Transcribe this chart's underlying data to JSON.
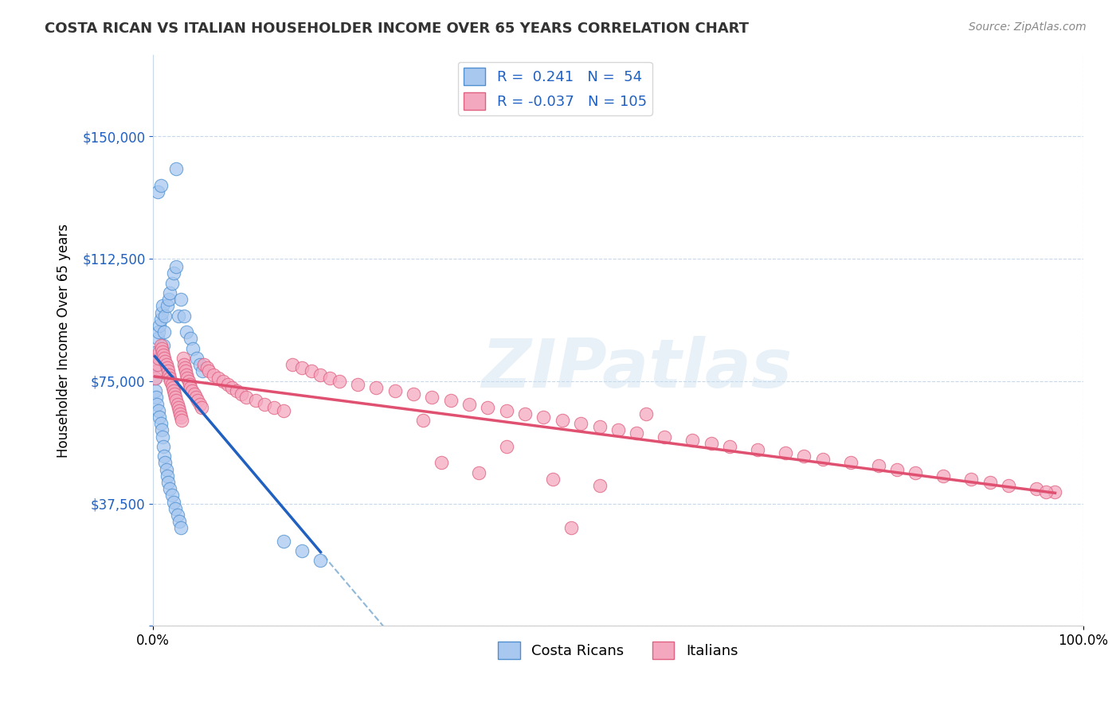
{
  "title": "COSTA RICAN VS ITALIAN HOUSEHOLDER INCOME OVER 65 YEARS CORRELATION CHART",
  "source": "Source: ZipAtlas.com",
  "ylabel": "Householder Income Over 65 years",
  "xlim": [
    0,
    1
  ],
  "ylim": [
    0,
    175000
  ],
  "yticks": [
    0,
    37500,
    75000,
    112500,
    150000
  ],
  "ytick_labels": [
    "",
    "$37,500",
    "$75,000",
    "$112,500",
    "$150,000"
  ],
  "xtick_labels": [
    "0.0%",
    "100.0%"
  ],
  "cr_color": "#a8c8f0",
  "it_color": "#f4a8bf",
  "cr_edge_color": "#5090d0",
  "it_edge_color": "#e06080",
  "cr_line_color": "#2060c0",
  "it_line_color": "#e05070",
  "dashed_line_color": "#90b8d8",
  "watermark": "ZIPatlas",
  "background_color": "#ffffff",
  "grid_color": "#c8d8e8",
  "costa_ricans_x": [
    0.005,
    0.008,
    0.025,
    0.002,
    0.003,
    0.004,
    0.005,
    0.006,
    0.007,
    0.008,
    0.009,
    0.01,
    0.011,
    0.012,
    0.013,
    0.015,
    0.017,
    0.018,
    0.02,
    0.022,
    0.025,
    0.027,
    0.03,
    0.033,
    0.036,
    0.04,
    0.043,
    0.047,
    0.05,
    0.053,
    0.002,
    0.003,
    0.004,
    0.006,
    0.007,
    0.008,
    0.009,
    0.01,
    0.011,
    0.012,
    0.013,
    0.014,
    0.015,
    0.016,
    0.018,
    0.02,
    0.022,
    0.024,
    0.026,
    0.028,
    0.03,
    0.14,
    0.16,
    0.18
  ],
  "costa_ricans_y": [
    133000,
    135000,
    140000,
    76000,
    80000,
    84000,
    88000,
    90000,
    92000,
    94000,
    96000,
    98000,
    86000,
    90000,
    95000,
    98000,
    100000,
    102000,
    105000,
    108000,
    110000,
    95000,
    100000,
    95000,
    90000,
    88000,
    85000,
    82000,
    80000,
    78000,
    72000,
    70000,
    68000,
    66000,
    64000,
    62000,
    60000,
    58000,
    55000,
    52000,
    50000,
    48000,
    46000,
    44000,
    42000,
    40000,
    38000,
    36000,
    34000,
    32000,
    30000,
    26000,
    23000,
    20000
  ],
  "italians_x": [
    0.002,
    0.004,
    0.005,
    0.006,
    0.007,
    0.008,
    0.009,
    0.01,
    0.011,
    0.012,
    0.013,
    0.014,
    0.015,
    0.016,
    0.017,
    0.018,
    0.019,
    0.02,
    0.021,
    0.022,
    0.023,
    0.024,
    0.025,
    0.026,
    0.027,
    0.028,
    0.029,
    0.03,
    0.031,
    0.032,
    0.033,
    0.034,
    0.035,
    0.036,
    0.037,
    0.038,
    0.039,
    0.04,
    0.042,
    0.044,
    0.046,
    0.048,
    0.05,
    0.052,
    0.055,
    0.058,
    0.06,
    0.065,
    0.07,
    0.075,
    0.08,
    0.085,
    0.09,
    0.095,
    0.1,
    0.11,
    0.12,
    0.13,
    0.14,
    0.15,
    0.16,
    0.17,
    0.18,
    0.19,
    0.2,
    0.22,
    0.24,
    0.26,
    0.28,
    0.3,
    0.32,
    0.34,
    0.36,
    0.38,
    0.4,
    0.42,
    0.44,
    0.46,
    0.48,
    0.5,
    0.52,
    0.55,
    0.58,
    0.6,
    0.62,
    0.65,
    0.68,
    0.7,
    0.72,
    0.75,
    0.78,
    0.8,
    0.82,
    0.85,
    0.88,
    0.9,
    0.92,
    0.95,
    0.97,
    0.45,
    0.38,
    0.53,
    0.29,
    0.35,
    0.31,
    0.43,
    0.48,
    0.96
  ],
  "italians_y": [
    76000,
    78000,
    80000,
    82000,
    84000,
    86000,
    85000,
    84000,
    83000,
    82000,
    81000,
    80000,
    79000,
    78000,
    77000,
    76000,
    75000,
    74000,
    73000,
    72000,
    71000,
    70000,
    69000,
    68000,
    67000,
    66000,
    65000,
    64000,
    63000,
    82000,
    80000,
    79000,
    78000,
    77000,
    76000,
    75000,
    74000,
    73000,
    72000,
    71000,
    70000,
    69000,
    68000,
    67000,
    80000,
    79000,
    78000,
    77000,
    76000,
    75000,
    74000,
    73000,
    72000,
    71000,
    70000,
    69000,
    68000,
    67000,
    66000,
    80000,
    79000,
    78000,
    77000,
    76000,
    75000,
    74000,
    73000,
    72000,
    71000,
    70000,
    69000,
    68000,
    67000,
    66000,
    65000,
    64000,
    63000,
    62000,
    61000,
    60000,
    59000,
    58000,
    57000,
    56000,
    55000,
    54000,
    53000,
    52000,
    51000,
    50000,
    49000,
    48000,
    47000,
    46000,
    45000,
    44000,
    43000,
    42000,
    41000,
    30000,
    55000,
    65000,
    63000,
    47000,
    50000,
    45000,
    43000,
    41000
  ]
}
